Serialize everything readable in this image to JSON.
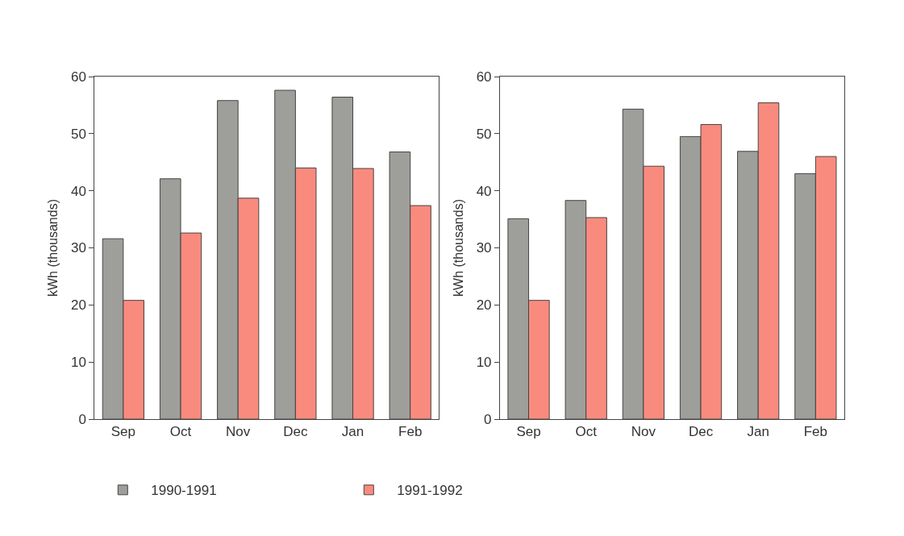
{
  "chart_data": [
    {
      "type": "bar",
      "ylabel": "kWh (thousands)",
      "categories": [
        "Sep",
        "Oct",
        "Nov",
        "Dec",
        "Jan",
        "Feb"
      ],
      "ylim": [
        0,
        60
      ],
      "yticks": [
        0,
        10,
        20,
        30,
        40,
        50,
        60
      ],
      "legend": "bottom",
      "series": [
        {
          "name": "1990-1991",
          "color": "#9e9e9a",
          "values": [
            31.6,
            42.1,
            55.8,
            57.6,
            56.4,
            46.8
          ]
        },
        {
          "name": "1991-1992",
          "color": "#f98b7e",
          "values": [
            20.8,
            32.6,
            38.7,
            44.0,
            43.9,
            37.4
          ]
        }
      ]
    },
    {
      "type": "bar",
      "ylabel": "kWh (thousands)",
      "categories": [
        "Sep",
        "Oct",
        "Nov",
        "Dec",
        "Jan",
        "Feb"
      ],
      "ylim": [
        0,
        60
      ],
      "yticks": [
        0,
        10,
        20,
        30,
        40,
        50,
        60
      ],
      "legend": "bottom",
      "series": [
        {
          "name": "1990-1991",
          "color": "#9e9e9a",
          "values": [
            35.1,
            38.3,
            54.3,
            49.5,
            46.9,
            43.0
          ]
        },
        {
          "name": "1991-1992",
          "color": "#f98b7e",
          "values": [
            20.8,
            35.3,
            44.3,
            51.6,
            55.4,
            46.0
          ]
        }
      ]
    }
  ]
}
